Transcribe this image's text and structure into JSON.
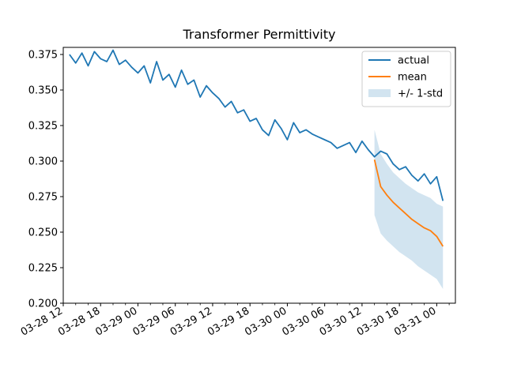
{
  "chart_data": {
    "type": "line",
    "title": "Transformer Permittivity",
    "xlabel": "",
    "ylabel": "",
    "x_axis": {
      "kind": "datetime",
      "start": "2024-03-28 12:00",
      "end": "2024-03-31 03:00",
      "major_tick_labels": [
        "03-28 12",
        "03-28 18",
        "03-29 00",
        "03-29 06",
        "03-29 12",
        "03-29 18",
        "03-30 00",
        "03-30 06",
        "03-30 12",
        "03-30 18",
        "03-31 00"
      ],
      "major_ticks": [
        "2024-03-28 12:00",
        "2024-03-28 18:00",
        "2024-03-29 00:00",
        "2024-03-29 06:00",
        "2024-03-29 12:00",
        "2024-03-29 18:00",
        "2024-03-30 00:00",
        "2024-03-30 06:00",
        "2024-03-30 12:00",
        "2024-03-30 18:00",
        "2024-03-31 00:00"
      ]
    },
    "y_axis": {
      "ylim": [
        0.2,
        0.38
      ],
      "tick_labels": [
        "0.200",
        "0.225",
        "0.250",
        "0.275",
        "0.300",
        "0.325",
        "0.350",
        "0.375"
      ],
      "ticks": [
        0.2,
        0.225,
        0.25,
        0.275,
        0.3,
        0.325,
        0.35,
        0.375
      ]
    },
    "grid": false,
    "legend": {
      "position": "top-right",
      "entries": [
        "actual",
        "mean",
        "+/- 1-std"
      ]
    },
    "colors": {
      "actual": "#1f77b4",
      "mean": "#ff7f0e",
      "band": "#1f77b4"
    },
    "series": [
      {
        "name": "actual",
        "x": [
          "2024-03-28 13:00",
          "2024-03-28 14:00",
          "2024-03-28 15:00",
          "2024-03-28 16:00",
          "2024-03-28 17:00",
          "2024-03-28 18:00",
          "2024-03-28 19:00",
          "2024-03-28 20:00",
          "2024-03-28 21:00",
          "2024-03-28 22:00",
          "2024-03-28 23:00",
          "2024-03-29 00:00",
          "2024-03-29 01:00",
          "2024-03-29 02:00",
          "2024-03-29 03:00",
          "2024-03-29 04:00",
          "2024-03-29 05:00",
          "2024-03-29 06:00",
          "2024-03-29 07:00",
          "2024-03-29 08:00",
          "2024-03-29 09:00",
          "2024-03-29 10:00",
          "2024-03-29 11:00",
          "2024-03-29 12:00",
          "2024-03-29 13:00",
          "2024-03-29 14:00",
          "2024-03-29 15:00",
          "2024-03-29 16:00",
          "2024-03-29 17:00",
          "2024-03-29 18:00",
          "2024-03-29 19:00",
          "2024-03-29 20:00",
          "2024-03-29 21:00",
          "2024-03-29 22:00",
          "2024-03-29 23:00",
          "2024-03-30 00:00",
          "2024-03-30 01:00",
          "2024-03-30 02:00",
          "2024-03-30 03:00",
          "2024-03-30 04:00",
          "2024-03-30 05:00",
          "2024-03-30 06:00",
          "2024-03-30 07:00",
          "2024-03-30 08:00",
          "2024-03-30 09:00",
          "2024-03-30 10:00",
          "2024-03-30 11:00",
          "2024-03-30 12:00",
          "2024-03-30 13:00",
          "2024-03-30 14:00",
          "2024-03-30 15:00",
          "2024-03-30 16:00",
          "2024-03-30 17:00",
          "2024-03-30 18:00",
          "2024-03-30 19:00",
          "2024-03-30 20:00",
          "2024-03-30 21:00",
          "2024-03-30 22:00",
          "2024-03-30 23:00",
          "2024-03-31 00:00",
          "2024-03-31 01:00"
        ],
        "y": [
          0.375,
          0.369,
          0.376,
          0.367,
          0.377,
          0.372,
          0.37,
          0.378,
          0.368,
          0.371,
          0.366,
          0.362,
          0.367,
          0.355,
          0.37,
          0.357,
          0.361,
          0.352,
          0.364,
          0.354,
          0.357,
          0.345,
          0.353,
          0.348,
          0.344,
          0.338,
          0.342,
          0.334,
          0.336,
          0.328,
          0.33,
          0.322,
          0.318,
          0.329,
          0.323,
          0.315,
          0.327,
          0.32,
          0.322,
          0.319,
          0.317,
          0.315,
          0.313,
          0.309,
          0.311,
          0.313,
          0.306,
          0.314,
          0.308,
          0.303,
          0.307,
          0.305,
          0.298,
          0.294,
          0.296,
          0.29,
          0.286,
          0.291,
          0.284,
          0.289,
          0.272
        ]
      },
      {
        "name": "mean",
        "x": [
          "2024-03-30 14:00",
          "2024-03-30 15:00",
          "2024-03-30 16:00",
          "2024-03-30 17:00",
          "2024-03-30 18:00",
          "2024-03-30 19:00",
          "2024-03-30 20:00",
          "2024-03-30 21:00",
          "2024-03-30 22:00",
          "2024-03-30 23:00",
          "2024-03-31 00:00",
          "2024-03-31 01:00"
        ],
        "y": [
          0.301,
          0.282,
          0.276,
          0.271,
          0.267,
          0.263,
          0.259,
          0.256,
          0.253,
          0.251,
          0.247,
          0.24
        ]
      },
      {
        "name": "+/- 1-std",
        "x": [
          "2024-03-30 14:00",
          "2024-03-30 15:00",
          "2024-03-30 16:00",
          "2024-03-30 17:00",
          "2024-03-30 18:00",
          "2024-03-30 19:00",
          "2024-03-30 20:00",
          "2024-03-30 21:00",
          "2024-03-30 22:00",
          "2024-03-30 23:00",
          "2024-03-31 00:00",
          "2024-03-31 01:00"
        ],
        "upper": [
          0.322,
          0.305,
          0.298,
          0.292,
          0.288,
          0.284,
          0.281,
          0.278,
          0.276,
          0.274,
          0.27,
          0.268
        ],
        "lower": [
          0.262,
          0.249,
          0.244,
          0.24,
          0.236,
          0.233,
          0.23,
          0.226,
          0.223,
          0.22,
          0.217,
          0.21
        ]
      }
    ]
  }
}
